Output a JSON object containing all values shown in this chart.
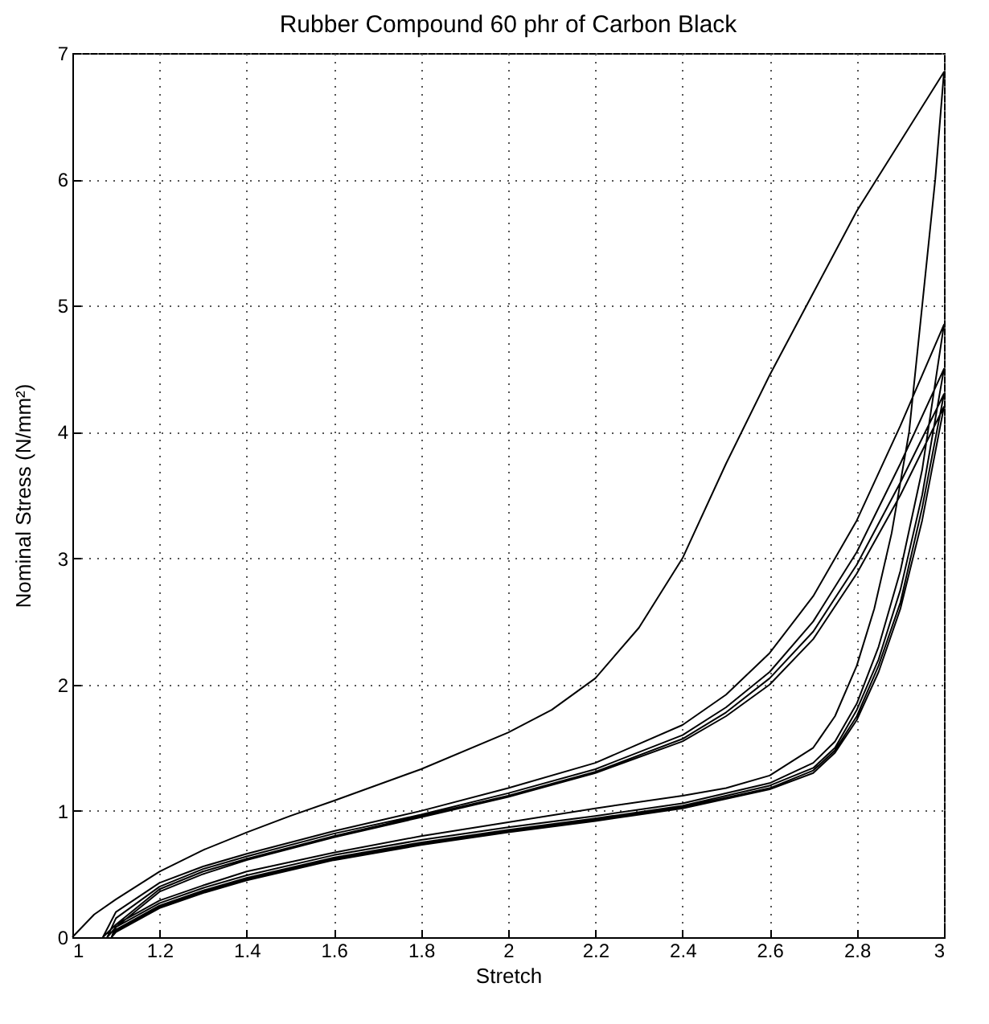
{
  "chart_data": {
    "type": "line",
    "title": "Rubber Compound 60 phr of Carbon Black",
    "xlabel": "Stretch",
    "ylabel": "Nominal Stress (N/mm²)",
    "xlim": [
      1,
      3
    ],
    "ylim": [
      0,
      7
    ],
    "xticks": [
      1,
      1.2,
      1.4,
      1.6,
      1.8,
      2,
      2.2,
      2.4,
      2.6,
      2.8,
      3
    ],
    "yticks": [
      0,
      1,
      2,
      3,
      4,
      5,
      6,
      7
    ],
    "grid": true,
    "line_style": "solid",
    "marker": "none",
    "series": [
      {
        "color": "#000000",
        "x": [
          1,
          1.05,
          1.1,
          1.2,
          1.3,
          1.4,
          1.5,
          1.6,
          1.8,
          2,
          2.1,
          2.2,
          2.3,
          2.4,
          2.5,
          2.6,
          2.7,
          2.8,
          2.9,
          3,
          2.98,
          2.95,
          2.92,
          2.88,
          2.84,
          2.8,
          2.75,
          2.7,
          2.6,
          2.5,
          2.4,
          2.2,
          2,
          1.8,
          1.6,
          1.4,
          1.3,
          1.2,
          1.1,
          1.07,
          1.1,
          1.2,
          1.3,
          1.4,
          1.6,
          1.8,
          2,
          2.2,
          2.4,
          2.5,
          2.6,
          2.7,
          2.8,
          2.9,
          3,
          2.95,
          2.9,
          2.85,
          2.8,
          2.75,
          2.7,
          2.6,
          2.4,
          2.2,
          2,
          1.8,
          1.6,
          1.4,
          1.3,
          1.2,
          1.1,
          1.08,
          1.1,
          1.2,
          1.3,
          1.4,
          1.6,
          1.8,
          2,
          2.2,
          2.4,
          2.5,
          2.6,
          2.7,
          2.8,
          2.9,
          3,
          2.95,
          2.9,
          2.85,
          2.8,
          2.75,
          2.7,
          2.6,
          2.4,
          2.2,
          2,
          1.8,
          1.6,
          1.4,
          1.3,
          1.2,
          1.1,
          1.09,
          1.1,
          1.2,
          1.3,
          1.4,
          1.6,
          1.8,
          2,
          2.2,
          2.4,
          2.5,
          2.6,
          2.7,
          2.8,
          2.9,
          3,
          2.95,
          2.9,
          2.85,
          2.8,
          2.75,
          2.7,
          2.6,
          2.4,
          2.2,
          2,
          1.8,
          1.6,
          1.4,
          1.3,
          1.2,
          1.1,
          1.09,
          1.1,
          1.2,
          1.3,
          1.4,
          1.6,
          1.8,
          2,
          2.2,
          2.4,
          2.5,
          2.6,
          2.7,
          2.8,
          2.9,
          3,
          2.95,
          2.9,
          2.85,
          2.8,
          2.75,
          2.7,
          2.6,
          2.4,
          2.2,
          2,
          1.8,
          1.6,
          1.4,
          1.3,
          1.2,
          1.1,
          1.09
        ],
        "values": [
          0,
          0.18,
          0.3,
          0.52,
          0.69,
          0.83,
          0.96,
          1.08,
          1.33,
          1.62,
          1.8,
          2.05,
          2.45,
          3.0,
          3.75,
          4.45,
          5.1,
          5.75,
          6.3,
          6.85,
          6.0,
          5.0,
          4.0,
          3.2,
          2.6,
          2.15,
          1.75,
          1.5,
          1.28,
          1.18,
          1.12,
          1.02,
          0.91,
          0.8,
          0.67,
          0.52,
          0.41,
          0.29,
          0.1,
          0,
          0.2,
          0.43,
          0.56,
          0.66,
          0.84,
          1.0,
          1.18,
          1.38,
          1.68,
          1.92,
          2.25,
          2.7,
          3.3,
          4.05,
          4.85,
          3.7,
          2.9,
          2.3,
          1.85,
          1.55,
          1.38,
          1.22,
          1.06,
          0.96,
          0.87,
          0.77,
          0.65,
          0.49,
          0.39,
          0.27,
          0.08,
          0,
          0.15,
          0.4,
          0.54,
          0.64,
          0.82,
          0.97,
          1.14,
          1.33,
          1.6,
          1.82,
          2.1,
          2.5,
          3.05,
          3.75,
          4.5,
          3.5,
          2.75,
          2.2,
          1.8,
          1.5,
          1.34,
          1.2,
          1.04,
          0.94,
          0.85,
          0.75,
          0.63,
          0.47,
          0.37,
          0.25,
          0.06,
          0,
          0.1,
          0.38,
          0.52,
          0.62,
          0.8,
          0.96,
          1.12,
          1.31,
          1.57,
          1.78,
          2.05,
          2.42,
          2.95,
          3.6,
          4.3,
          3.4,
          2.65,
          2.15,
          1.75,
          1.48,
          1.32,
          1.18,
          1.03,
          0.93,
          0.84,
          0.74,
          0.62,
          0.46,
          0.36,
          0.24,
          0.05,
          0,
          0.08,
          0.36,
          0.5,
          0.61,
          0.79,
          0.95,
          1.11,
          1.3,
          1.55,
          1.75,
          2.0,
          2.36,
          2.88,
          3.5,
          4.2,
          3.3,
          2.6,
          2.1,
          1.72,
          1.46,
          1.3,
          1.17,
          1.02,
          0.92,
          0.83,
          0.73,
          0.61,
          0.45,
          0.35,
          0.23,
          0.04,
          0
        ]
      }
    ]
  }
}
